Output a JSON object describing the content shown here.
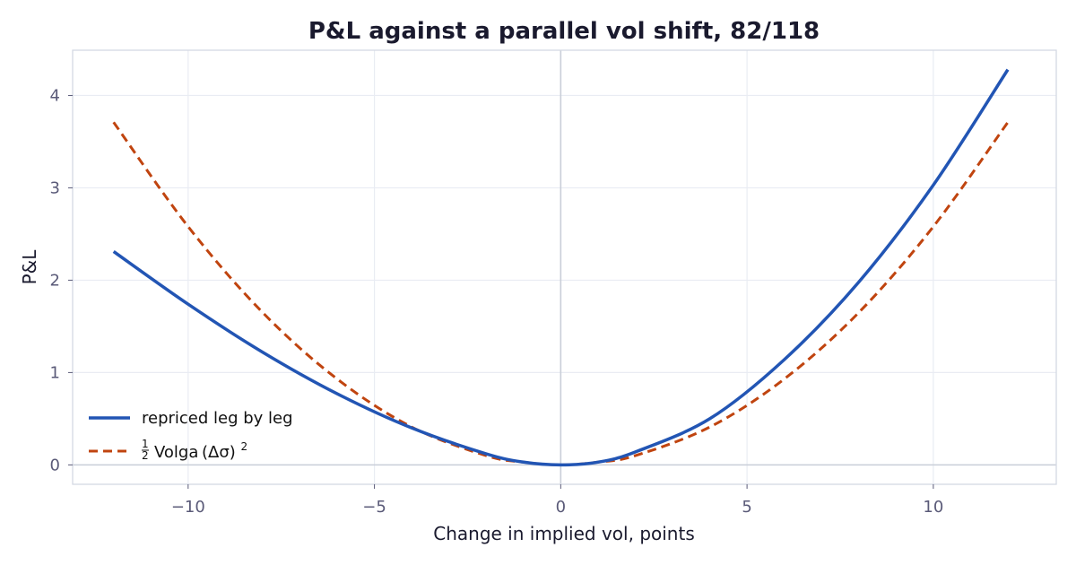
{
  "chart_data": {
    "type": "line",
    "title": "P&L against a parallel vol shift, 82/118",
    "xlabel": "Change in implied vol, points",
    "ylabel": "P&L",
    "xlim": [
      -13.1,
      13.3
    ],
    "ylim": [
      -0.21,
      4.49
    ],
    "x_ticks": [
      -10,
      -5,
      0,
      5,
      10
    ],
    "x_tick_labels": [
      "−10",
      "−5",
      "0",
      "5",
      "10"
    ],
    "y_ticks": [
      0,
      1,
      2,
      3,
      4
    ],
    "y_tick_labels": [
      "0",
      "1",
      "2",
      "3",
      "4"
    ],
    "grid": true,
    "legend_position": "lower-left",
    "series": [
      {
        "name": "repriced leg by leg",
        "style": "solid",
        "color": "#2255b4",
        "x": [
          -12,
          -10,
          -8,
          -6,
          -4,
          -2,
          -1,
          0,
          1,
          2,
          4,
          6,
          8,
          10,
          12
        ],
        "y": [
          2.31,
          1.74,
          1.22,
          0.77,
          0.4,
          0.12,
          0.03,
          0.0,
          0.03,
          0.14,
          0.5,
          1.14,
          1.98,
          3.03,
          4.28
        ]
      },
      {
        "name": "½ Volga (Δσ)²",
        "legend_parts": {
          "frac_num": "1",
          "frac_den": "2",
          "main": "Volga (Δσ)",
          "sup": "2"
        },
        "style": "dashed",
        "color": "#c0440f",
        "x": [
          -12,
          -10,
          -8,
          -6,
          -4,
          -2,
          -1,
          0,
          1,
          2,
          4,
          6,
          8,
          10,
          12
        ],
        "y": [
          3.71,
          2.58,
          1.65,
          0.93,
          0.41,
          0.1,
          0.03,
          0.0,
          0.03,
          0.1,
          0.41,
          0.93,
          1.65,
          2.58,
          3.71
        ]
      }
    ]
  }
}
